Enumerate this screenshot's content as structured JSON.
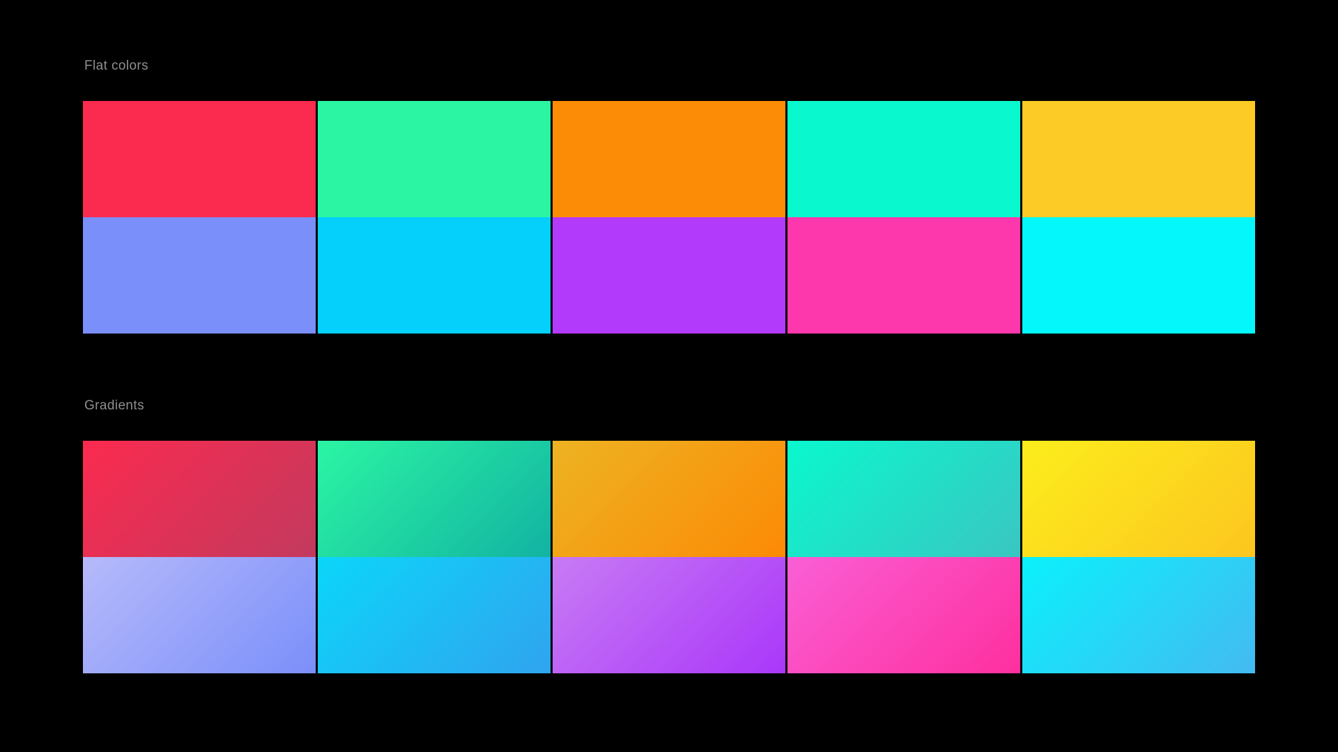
{
  "canvas": {
    "background": "#000000",
    "label_color": "#8F8F8F"
  },
  "sections": [
    {
      "id": "flat-colors",
      "title": "Flat colors",
      "type": "flat",
      "swatches": [
        {
          "name": "red",
          "color": "#FB2A4F"
        },
        {
          "name": "spring-green",
          "color": "#2BF5A3"
        },
        {
          "name": "orange",
          "color": "#FC8B05"
        },
        {
          "name": "turquoise",
          "color": "#0AF8CD"
        },
        {
          "name": "yellow",
          "color": "#FCCB25"
        },
        {
          "name": "periwinkle",
          "color": "#7B8FFA"
        },
        {
          "name": "sky-cyan",
          "color": "#04D0FB"
        },
        {
          "name": "purple",
          "color": "#B23AFA"
        },
        {
          "name": "hot-pink",
          "color": "#FD37AC"
        },
        {
          "name": "cyan",
          "color": "#04F7FB"
        }
      ]
    },
    {
      "id": "gradients",
      "title": "Gradients",
      "type": "gradient",
      "swatches": [
        {
          "name": "red",
          "angle": "135deg",
          "from": "#FB2A4F",
          "to": "#C23A5E"
        },
        {
          "name": "spring-green",
          "angle": "135deg",
          "from": "#2BF5A3",
          "to": "#12B3A2"
        },
        {
          "name": "orange",
          "angle": "135deg",
          "from": "#EDB322",
          "to": "#FC8A06"
        },
        {
          "name": "turquoise",
          "angle": "135deg",
          "from": "#0AF8CD",
          "to": "#3AC6C2"
        },
        {
          "name": "yellow",
          "angle": "135deg",
          "from": "#FCED1C",
          "to": "#FCC61F"
        },
        {
          "name": "periwinkle",
          "angle": "135deg",
          "from": "#B6BAFA",
          "to": "#7B8FFA"
        },
        {
          "name": "sky-cyan",
          "angle": "135deg",
          "from": "#0BD6F9",
          "to": "#30A4EF"
        },
        {
          "name": "purple",
          "angle": "135deg",
          "from": "#C77BF4",
          "to": "#AA37FA"
        },
        {
          "name": "hot-pink",
          "angle": "135deg",
          "from": "#FA5FD5",
          "to": "#FE2F9E"
        },
        {
          "name": "cyan",
          "angle": "135deg",
          "from": "#0AF1FB",
          "to": "#44BAF2"
        }
      ]
    }
  ]
}
